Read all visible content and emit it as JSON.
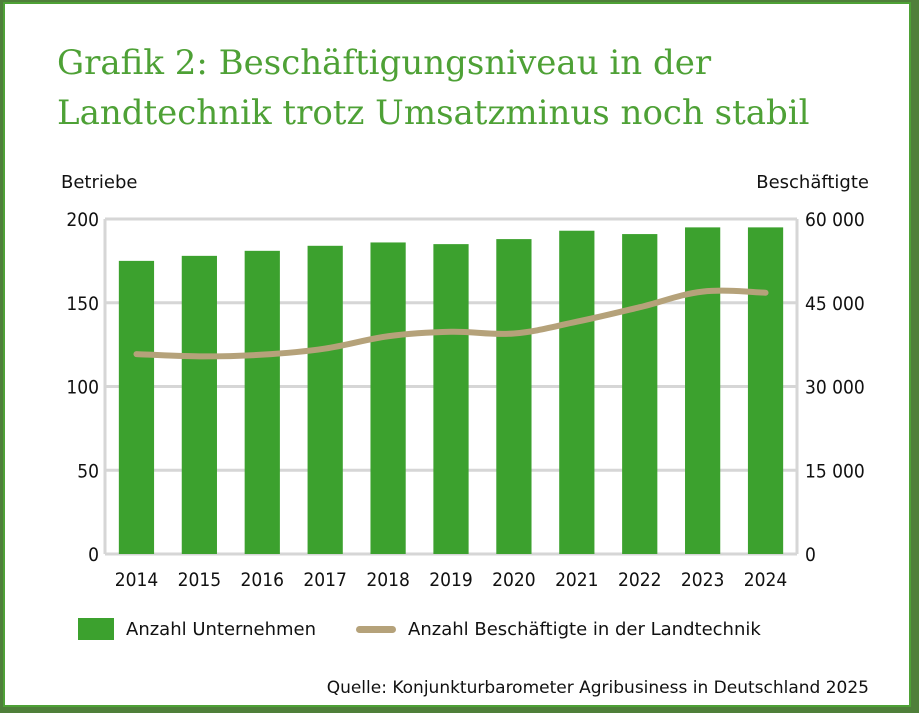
{
  "title": "Grafik 2: Beschäftigungsniveau in der Landtechnik trotz Umsatzminus noch stabil",
  "left_axis_title": "Betriebe",
  "right_axis_title": "Beschäftigte",
  "source": "Quelle: Konjunkturbarometer Agribusiness in Deutschland 2025",
  "colors": {
    "bar": "#3ca12e",
    "line": "#b5a27a",
    "grid": "#d6d6d6",
    "frame": "#4ea136"
  },
  "chart_data": {
    "type": "bar",
    "categories": [
      "2014",
      "2015",
      "2016",
      "2017",
      "2018",
      "2019",
      "2020",
      "2021",
      "2022",
      "2023",
      "2024"
    ],
    "series": [
      {
        "name": "Anzahl Unternehmen",
        "type": "bar",
        "axis": "left",
        "values": [
          175,
          178,
          181,
          184,
          186,
          185,
          188,
          193,
          191,
          195,
          195
        ]
      },
      {
        "name": "Anzahl Beschäftigte in der Landtechnik",
        "type": "line",
        "axis": "right",
        "values": [
          35800,
          35400,
          35700,
          36800,
          39000,
          39800,
          39500,
          41600,
          44200,
          47000,
          46800
        ]
      }
    ],
    "ylim_left": [
      0,
      200
    ],
    "yticks_left": [
      "0",
      "50",
      "100",
      "150",
      "200"
    ],
    "ylim_right": [
      0,
      60000
    ],
    "yticks_right": [
      "0",
      "15 000",
      "30 000",
      "45 000",
      "60 000"
    ],
    "ylabel_left": "Betriebe",
    "ylabel_right": "Beschäftigte",
    "grid": "horizontal",
    "legend_position": "bottom-left"
  }
}
